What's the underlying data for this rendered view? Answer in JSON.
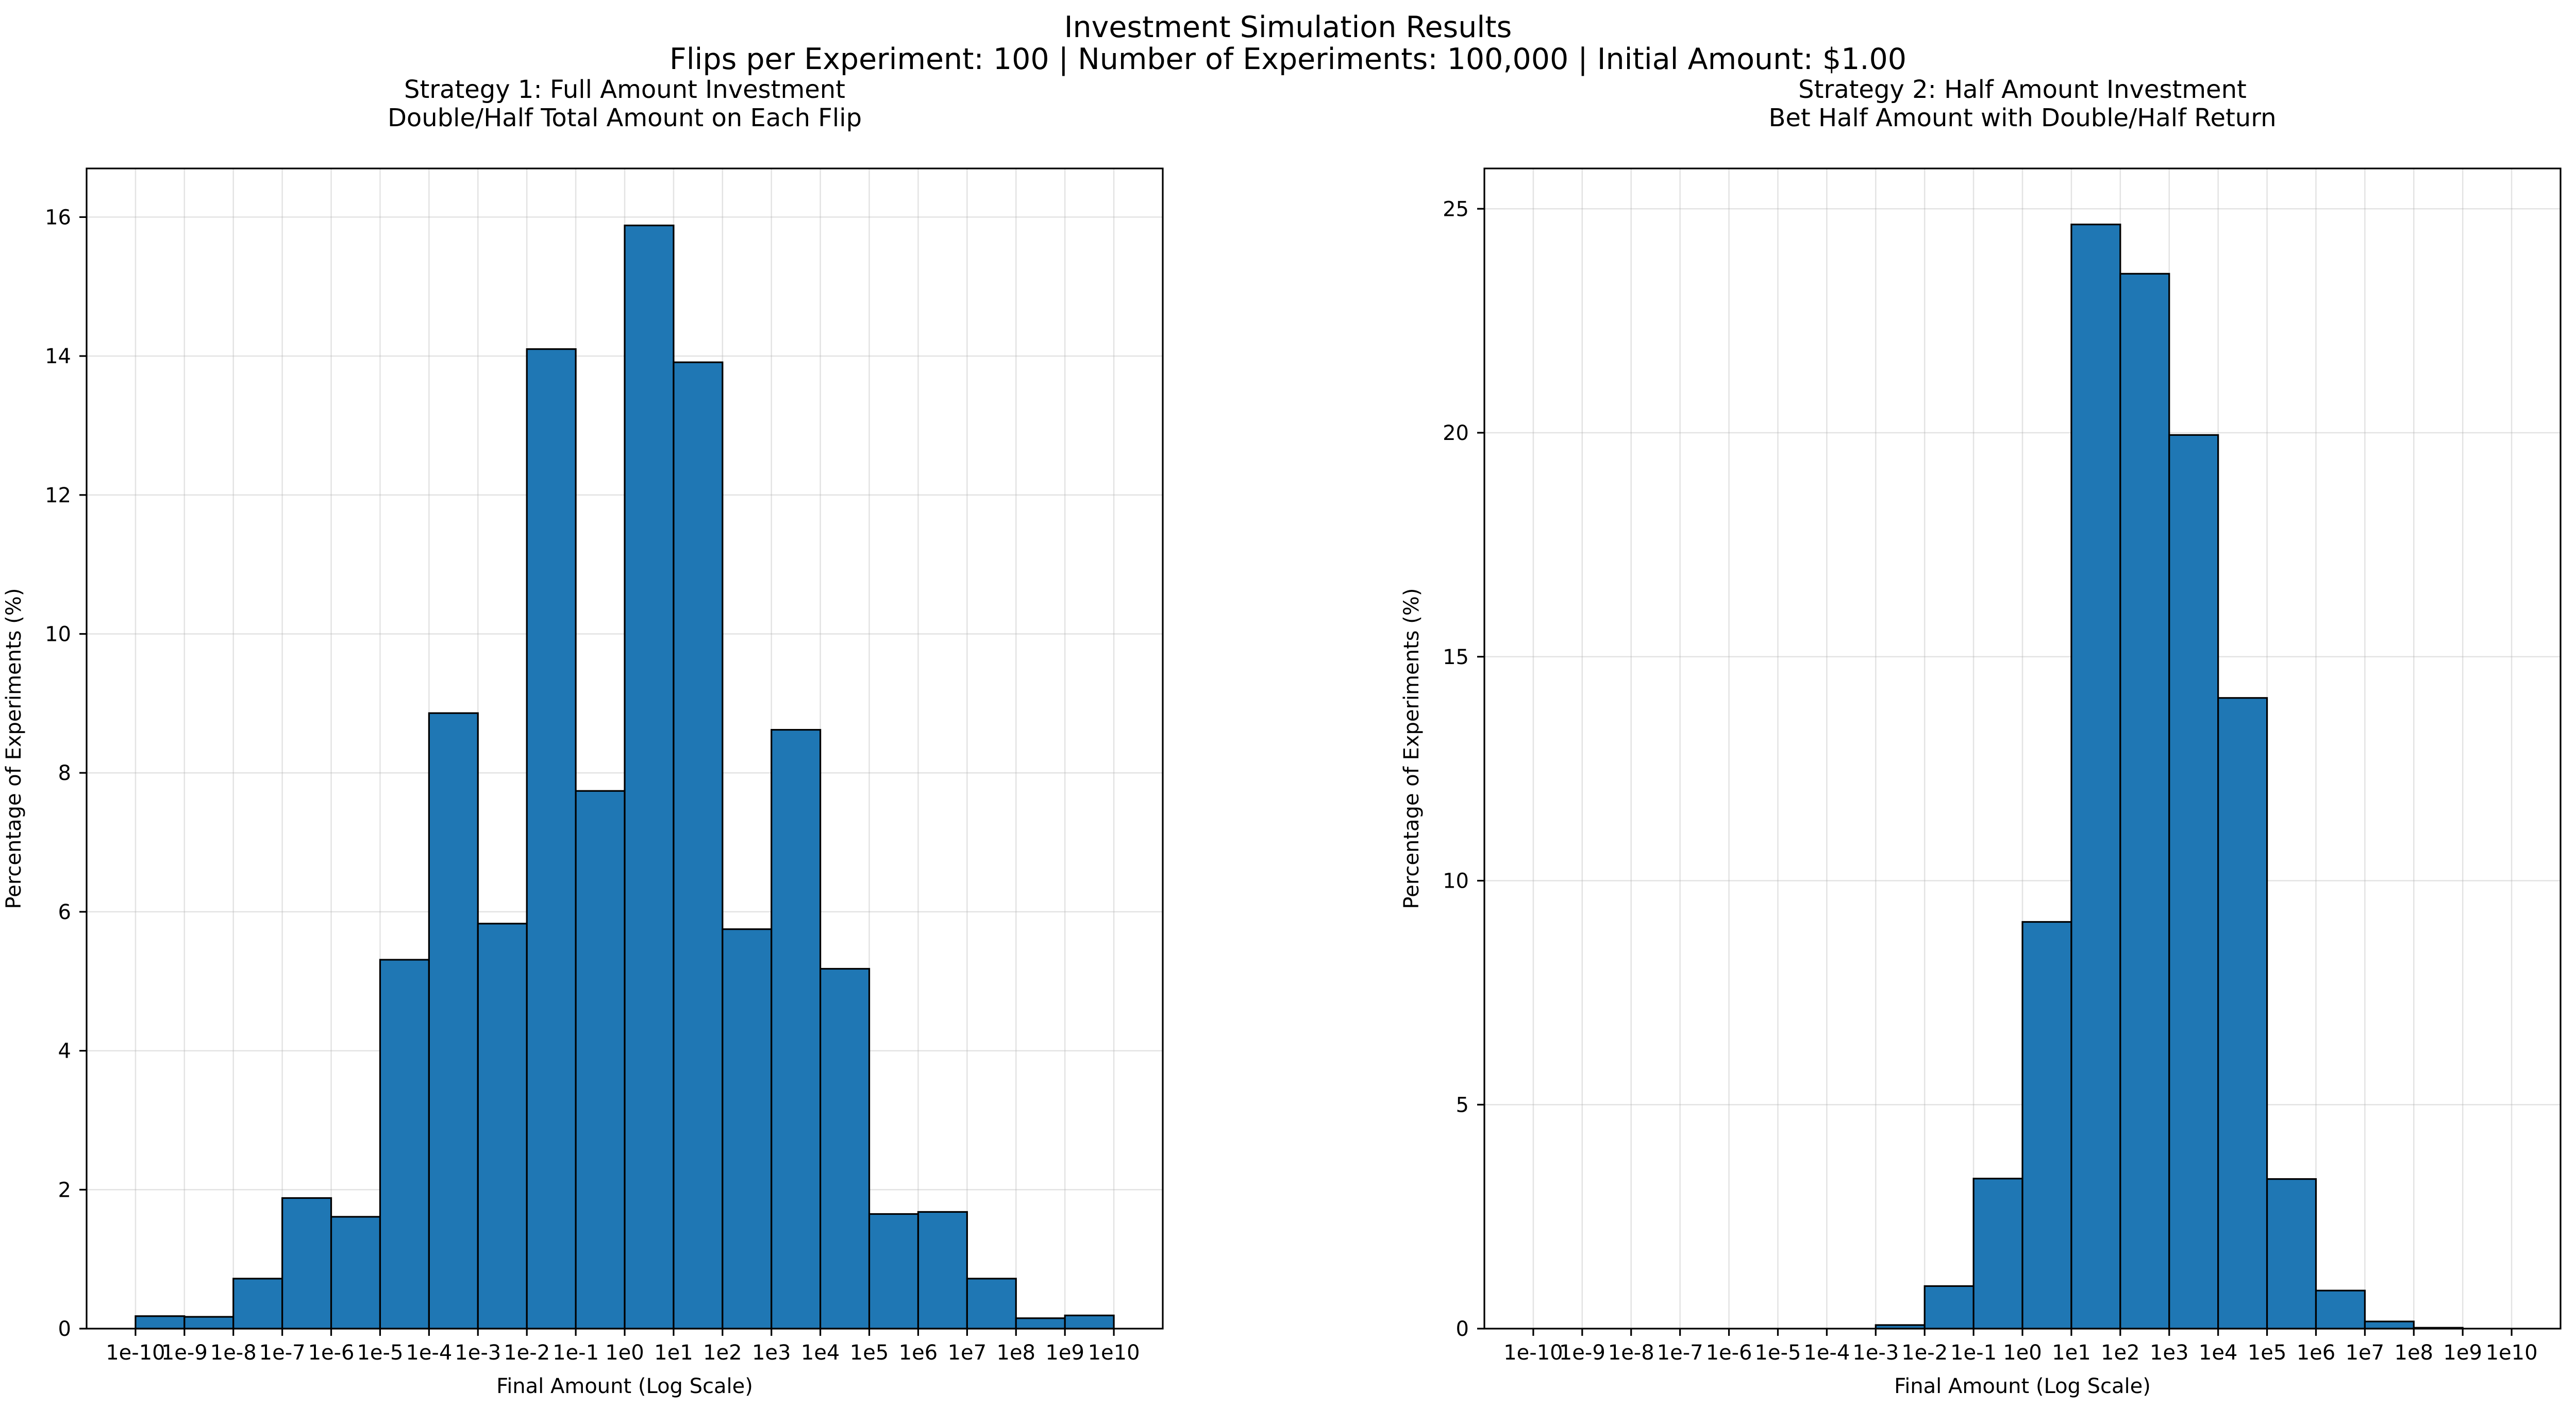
{
  "figure": {
    "title": "Investment Simulation Results",
    "subtitle": "Flips per Experiment: 100 | Number of Experiments: 100,000 | Initial Amount: $1.00"
  },
  "chart_data": [
    {
      "type": "bar",
      "title": "Strategy 1: Full Amount Investment",
      "subtitle": "Double/Half Total Amount on Each Flip",
      "xlabel": "Final Amount (Log Scale)",
      "ylabel": "Percentage of Experiments (%)",
      "x_scale": "log",
      "x_ticks": [
        "1e-10",
        "1e-9",
        "1e-8",
        "1e-7",
        "1e-6",
        "1e-5",
        "1e-4",
        "1e-3",
        "1e-2",
        "1e-1",
        "1e0",
        "1e1",
        "1e2",
        "1e3",
        "1e4",
        "1e5",
        "1e6",
        "1e7",
        "1e8",
        "1e9",
        "1e10"
      ],
      "bin_edges_log10": [
        -10,
        -9,
        -8,
        -7,
        -6,
        -5,
        -4,
        -3,
        -2,
        -1,
        0,
        1,
        2,
        3,
        4,
        5,
        6,
        7,
        8,
        9,
        10
      ],
      "values": [
        0.18,
        0.17,
        0.72,
        1.88,
        1.61,
        5.31,
        8.86,
        5.83,
        14.1,
        7.74,
        15.88,
        13.91,
        5.75,
        8.62,
        5.18,
        1.65,
        1.68,
        0.72,
        0.15,
        0.19
      ],
      "y_ticks": [
        0,
        2,
        4,
        6,
        8,
        10,
        12,
        14,
        16
      ],
      "ylim": [
        0,
        16.7
      ],
      "xlim_log10": [
        -11,
        11
      ],
      "grid": true,
      "bar_color": "#1f77b4",
      "edge_color": "#000000"
    },
    {
      "type": "bar",
      "title": "Strategy 2: Half Amount Investment",
      "subtitle": "Bet Half Amount with Double/Half Return",
      "xlabel": "Final Amount (Log Scale)",
      "ylabel": "Percentage of Experiments (%)",
      "x_scale": "log",
      "x_ticks": [
        "1e-10",
        "1e-9",
        "1e-8",
        "1e-7",
        "1e-6",
        "1e-5",
        "1e-4",
        "1e-3",
        "1e-2",
        "1e-1",
        "1e0",
        "1e1",
        "1e2",
        "1e3",
        "1e4",
        "1e5",
        "1e6",
        "1e7",
        "1e8",
        "1e9",
        "1e10"
      ],
      "bin_edges_log10": [
        -10,
        -9,
        -8,
        -7,
        -6,
        -5,
        -4,
        -3,
        -2,
        -1,
        0,
        1,
        2,
        3,
        4,
        5,
        6,
        7,
        8,
        9,
        10
      ],
      "values": [
        0,
        0,
        0,
        0,
        0,
        0,
        0,
        0.08,
        0.95,
        3.35,
        9.08,
        24.65,
        23.55,
        19.95,
        14.08,
        3.34,
        0.85,
        0.16,
        0.02,
        0
      ],
      "y_ticks": [
        0,
        5,
        10,
        15,
        20,
        25
      ],
      "ylim": [
        0,
        25.9
      ],
      "xlim_log10": [
        -11,
        11
      ],
      "grid": true,
      "bar_color": "#1f77b4",
      "edge_color": "#000000"
    }
  ]
}
